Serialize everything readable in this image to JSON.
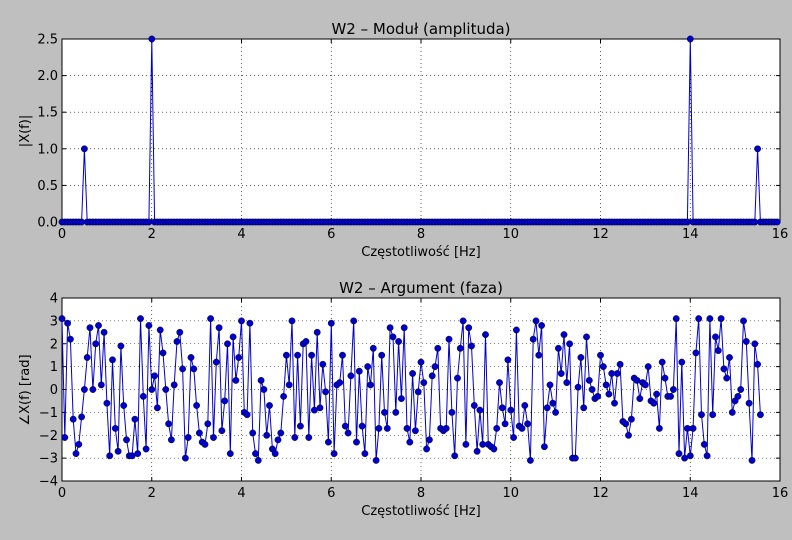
{
  "figure": {
    "background": "#bfbfbf",
    "line_color": "#0000cc",
    "marker_color": "#0000cc"
  },
  "chart_data": [
    {
      "type": "line",
      "title": "W2 – Moduł (amplituda)",
      "xlabel": "Częstotliwość [Hz]",
      "ylabel": "|X(f)|",
      "xlim": [
        0,
        16
      ],
      "ylim": [
        0,
        2.5
      ],
      "xticks": [
        "0",
        "2",
        "4",
        "6",
        "8",
        "10",
        "12",
        "14",
        "16"
      ],
      "yticks": [
        "0.0",
        "0.5",
        "1.0",
        "1.5",
        "2.0",
        "2.5"
      ],
      "grid": true,
      "x_step": 0.0625,
      "x_start": 0,
      "baseline": 0.0,
      "peaks": [
        {
          "x": 0.5,
          "y": 1.0
        },
        {
          "x": 2.0,
          "y": 2.5
        },
        {
          "x": 14.0,
          "y": 2.5
        },
        {
          "x": 15.5,
          "y": 1.0
        }
      ]
    },
    {
      "type": "line",
      "title": "W2 – Argument (faza)",
      "xlabel": "Częstotliwość [Hz]",
      "ylabel": "∠X(f) [rad]",
      "xlim": [
        0,
        16
      ],
      "ylim": [
        -4,
        4
      ],
      "xticks": [
        "0",
        "2",
        "4",
        "6",
        "8",
        "10",
        "12",
        "14",
        "16"
      ],
      "yticks": [
        "−4",
        "−3",
        "−2",
        "−1",
        "0",
        "1",
        "2",
        "3",
        "4"
      ],
      "grid": true,
      "x_step": 0.0625,
      "x_start": 0,
      "values": [
        3.1,
        -2.1,
        2.9,
        2.2,
        -1.3,
        -2.8,
        -2.4,
        -1.2,
        0.0,
        1.4,
        2.7,
        0.0,
        2.0,
        2.8,
        0.2,
        2.5,
        -0.6,
        -2.9,
        1.3,
        -1.7,
        -2.7,
        1.9,
        -0.7,
        -2.2,
        -2.9,
        -2.9,
        -1.3,
        -2.8,
        3.1,
        -0.3,
        -2.6,
        2.8,
        0.0,
        0.6,
        -0.8,
        2.6,
        1.6,
        0.0,
        -1.5,
        -2.2,
        0.2,
        2.1,
        2.5,
        0.9,
        -3.0,
        -2.1,
        1.4,
        0.9,
        -0.7,
        -1.9,
        -2.3,
        -2.4,
        -1.5,
        3.1,
        -2.1,
        1.2,
        2.7,
        -1.8,
        -0.5,
        2.0,
        -2.8,
        2.3,
        0.4,
        1.4,
        3.0,
        -1.0,
        -1.1,
        2.9,
        -1.9,
        -2.8,
        -3.1,
        0.4,
        0.0,
        -2.0,
        -0.7,
        -2.6,
        -2.8,
        -2.2,
        -1.9,
        -0.3,
        1.5,
        0.2,
        3.0,
        -2.1,
        1.5,
        -1.6,
        2.0,
        2.1,
        -2.1,
        1.5,
        -0.9,
        2.5,
        -0.8,
        1.1,
        -0.1,
        -2.3,
        2.9,
        -2.8,
        0.2,
        0.3,
        1.5,
        -1.6,
        -1.9,
        0.6,
        3.0,
        -2.3,
        0.8,
        -1.6,
        -2.8,
        1.0,
        0.2,
        1.8,
        -3.1,
        -1.7,
        1.5,
        -1.0,
        -1.7,
        2.7,
        2.3,
        -1.0,
        2.1,
        -0.4,
        2.7,
        -1.7,
        -2.3,
        0.7,
        -1.8,
        -0.1,
        1.2,
        0.3,
        -2.6,
        -2.2,
        0.6,
        1.0,
        1.8,
        -1.7,
        -1.8,
        -1.7,
        2.2,
        -1.0,
        -2.9,
        0.5,
        1.8,
        3.0,
        -2.4,
        2.7,
        1.9,
        -0.7,
        -2.7,
        -0.9,
        -2.4,
        2.4,
        -2.4,
        -2.5,
        -2.6,
        -1.7,
        0.3,
        -0.8,
        -1.5,
        1.3,
        -0.9,
        -2.1,
        2.6,
        -1.6,
        -1.7,
        -0.7,
        -1.5,
        -3.1,
        2.2,
        3.0,
        1.5,
        2.8,
        -2.5,
        -0.8,
        0.2,
        -0.6,
        -1.0,
        1.8,
        0.7,
        2.4,
        0.3,
        2.0,
        -3.0,
        -3.0,
        0.1,
        1.4,
        -0.8,
        2.3,
        0.4,
        0.0,
        -0.4,
        -0.3,
        1.5,
        1.0,
        0.2,
        -0.2,
        0.7,
        -0.6,
        0.7,
        1.1,
        -1.4,
        -1.5,
        -2.0,
        -1.3,
        0.5,
        0.4,
        -0.4,
        0.3,
        0.2,
        1.0,
        -0.5,
        -0.6,
        -0.2,
        -1.7,
        1.2,
        0.5,
        -0.3,
        -0.3,
        0.0,
        3.1,
        -2.8,
        1.2,
        -3.0,
        -1.7,
        -2.9,
        -1.7,
        1.6,
        3.1,
        -1.1,
        -2.4,
        -2.9,
        3.1,
        -1.1,
        2.3,
        1.7,
        3.1,
        0.9,
        0.5,
        1.4,
        -1.0,
        -0.5,
        -0.3,
        0.0,
        3.0,
        2.1,
        -0.6,
        -3.1,
        2.0,
        1.1,
        -1.1
      ]
    }
  ]
}
